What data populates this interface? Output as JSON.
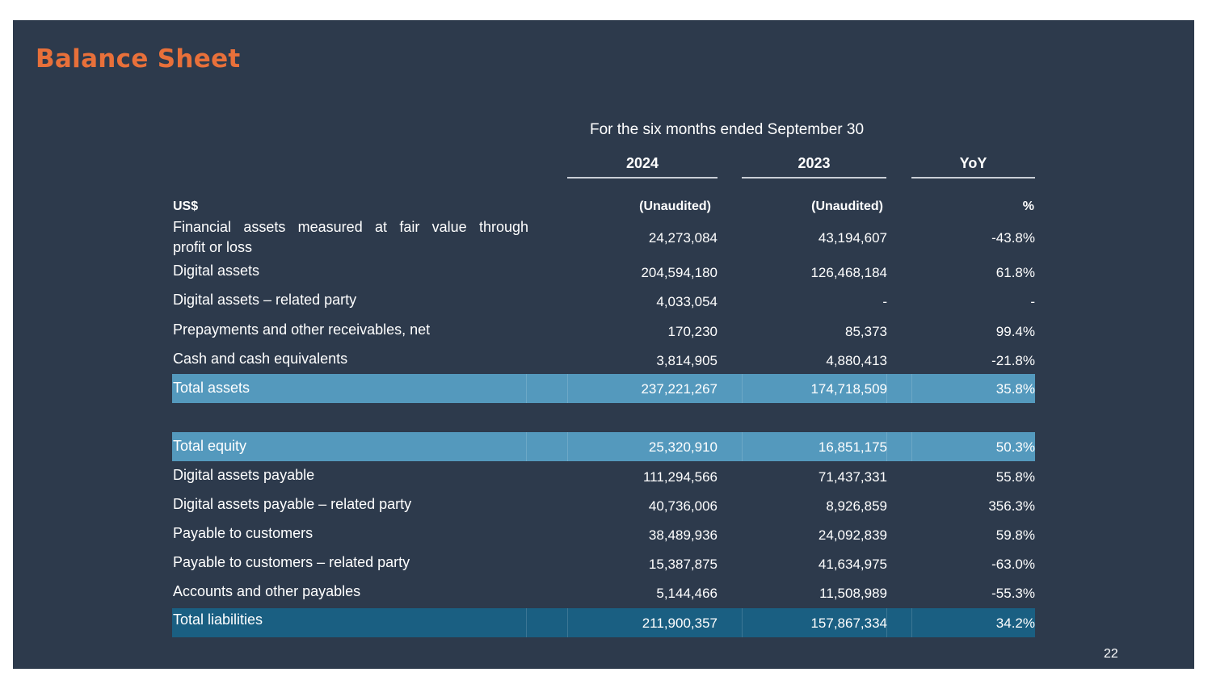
{
  "title": "Balance Sheet",
  "period": "For the six months ended  September 30",
  "columns": [
    "2024",
    "2023",
    "YoY"
  ],
  "unit_row": {
    "label": "US$",
    "c1": "(Unaudited)",
    "c2": "(Unaudited)",
    "c3": "%"
  },
  "rows": [
    {
      "label_line1": "Financial assets measured at fair value through",
      "label_line2": "profit or loss",
      "v2024": "24,273,084",
      "v2023": "43,194,607",
      "yoy": "-43.8%"
    },
    {
      "label": "Digital assets",
      "v2024": "204,594,180",
      "v2023": "126,468,184",
      "yoy": "61.8%"
    },
    {
      "label": "Digital assets – related party",
      "v2024": "4,033,054",
      "v2023": "-",
      "yoy": "-"
    },
    {
      "label": "Prepayments and other receivables, net",
      "v2024": "170,230",
      "v2023": "85,373",
      "yoy": "99.4%"
    },
    {
      "label": "Cash and cash equivalents",
      "v2024": "3,814,905",
      "v2023": "4,880,413",
      "yoy": "-21.8%"
    },
    {
      "label": "Total assets",
      "v2024": "237,221,267",
      "v2023": "174,718,509",
      "yoy": "35.8%"
    },
    {
      "label": "Total equity",
      "v2024": "25,320,910",
      "v2023": "16,851,175",
      "yoy": "50.3%"
    },
    {
      "label": "Digital assets payable",
      "v2024": "111,294,566",
      "v2023": "71,437,331",
      "yoy": "55.8%"
    },
    {
      "label": "Digital assets payable – related party",
      "v2024": "40,736,006",
      "v2023": "8,926,859",
      "yoy": "356.3%"
    },
    {
      "label": "Payable to customers",
      "v2024": "38,489,936",
      "v2023": "24,092,839",
      "yoy": "59.8%"
    },
    {
      "label": "Payable to customers – related party",
      "v2024": "15,387,875",
      "v2023": "41,634,975",
      "yoy": "-63.0%"
    },
    {
      "label": "Accounts and other payables",
      "v2024": "5,144,466",
      "v2023": "11,508,989",
      "yoy": "-55.3%"
    },
    {
      "label": "Total liabilities",
      "v2024": "211,900,357",
      "v2023": "157,867,334",
      "yoy": "34.2%"
    }
  ],
  "page_number": "22"
}
